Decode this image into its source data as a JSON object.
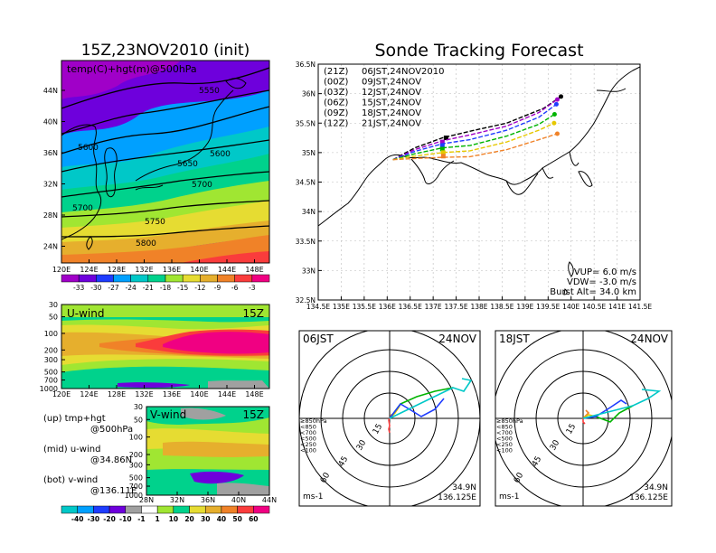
{
  "left_title": "15Z,23NOV2010 (init)",
  "right_title": "Sonde Tracking Forecast",
  "map500": {
    "label": "temp(C)+hgt(m)@500hPa",
    "lat_ticks": [
      "44N",
      "40N",
      "36N",
      "32N",
      "28N",
      "24N"
    ],
    "lon_ticks": [
      "120E",
      "124E",
      "128E",
      "132E",
      "136E",
      "140E",
      "144E",
      "148E"
    ],
    "contours": [
      "5550",
      "5600",
      "5650",
      "5600",
      "5700",
      "5700",
      "5750",
      "5800"
    ],
    "colorbar": [
      "-33",
      "-30",
      "-27",
      "-24",
      "-21",
      "-18",
      "-15",
      "-12",
      "-9",
      "-6",
      "-3"
    ],
    "colors": [
      "#a000c8",
      "#6e00dc",
      "#1e3cff",
      "#00a0ff",
      "#00c8c8",
      "#00d28c",
      "#a0e632",
      "#e6dc32",
      "#e6af2d",
      "#f08228",
      "#fa3c3c",
      "#f00082"
    ]
  },
  "uwind": {
    "label": "U-wind",
    "time": "15Z",
    "p_ticks": [
      "30",
      "50",
      "100",
      "200",
      "300",
      "500",
      "700",
      "1000"
    ],
    "lon_ticks": [
      "120E",
      "124E",
      "128E",
      "132E",
      "136E",
      "140E",
      "144E",
      "148E"
    ]
  },
  "vwind": {
    "label": "V-wind",
    "time": "15Z",
    "p_ticks": [
      "30",
      "50",
      "100",
      "200",
      "300",
      "500",
      "700",
      "1000"
    ],
    "lat_ticks": [
      "28N",
      "32N",
      "36N",
      "40N",
      "44N"
    ],
    "colorbar": [
      "-40",
      "-30",
      "-20",
      "-10",
      "-1",
      "1",
      "10",
      "20",
      "30",
      "40",
      "50",
      "60"
    ],
    "colors": [
      "#00c8c8",
      "#00a0ff",
      "#1e3cff",
      "#6e00dc",
      "#a0a0a0",
      "#ffffff",
      "#a0e632",
      "#00d28c",
      "#e6dc32",
      "#e6af2d",
      "#f08228",
      "#fa3c3c",
      "#f00082"
    ]
  },
  "legend_notes": [
    {
      "a": "(up) tmp+hgt",
      "b": "@500hPa"
    },
    {
      "a": "(mid) u-wind",
      "b": "@34.86N"
    },
    {
      "a": "(bot) v-wind",
      "b": "@136.11E"
    }
  ],
  "tracking": {
    "lat_ticks": [
      "36.5N",
      "36N",
      "35.5N",
      "35N",
      "34.5N",
      "34N",
      "33.5N",
      "33N",
      "32.5N"
    ],
    "lon_ticks": [
      "134.5E",
      "135E",
      "135.5E",
      "136E",
      "136.5E",
      "137E",
      "137.5E",
      "138E",
      "138.5E",
      "139E",
      "139.5E",
      "140E",
      "140.5E",
      "141E",
      "141.5E"
    ],
    "legend": [
      {
        "code": "(21Z)",
        "time": "06JST,24NOV2010",
        "color": "#000000"
      },
      {
        "code": "(00Z)",
        "time": "09JST,24NOV",
        "color": "#a000c8"
      },
      {
        "code": "(03Z)",
        "time": "12JST,24NOV",
        "color": "#1e3cff"
      },
      {
        "code": "(06Z)",
        "time": "15JST,24NOV",
        "color": "#00b400"
      },
      {
        "code": "(09Z)",
        "time": "18JST,24NOV",
        "color": "#e6c800"
      },
      {
        "code": "(12Z)",
        "time": "21JST,24NOV",
        "color": "#f08228"
      }
    ],
    "params": [
      "VUP=  6.0  m/s",
      "VDW= -3.0  m/s",
      "Burst Alt=  34.0  km"
    ]
  },
  "hodo1": {
    "time": "06JST",
    "date": "24NOV",
    "lat": "34.9N",
    "lon": "136.125E",
    "unit": "ms-1",
    "rings": [
      "15",
      "30",
      "45",
      "60"
    ]
  },
  "hodo2": {
    "time": "18JST",
    "date": "24NOV",
    "lat": "34.9N",
    "lon": "136.125E",
    "unit": "ms-1",
    "rings": [
      "15",
      "30",
      "45",
      "60"
    ]
  },
  "hodo_legend": [
    {
      "t": "≥850hPa",
      "c": "#fa3c3c"
    },
    {
      "t": "<850",
      "c": "#f08228"
    },
    {
      "t": "<700",
      "c": "#e6c800"
    },
    {
      "t": "<500",
      "c": "#00b400"
    },
    {
      "t": "<250",
      "c": "#1e3cff"
    },
    {
      "t": "<100",
      "c": "#00c8c8"
    }
  ]
}
